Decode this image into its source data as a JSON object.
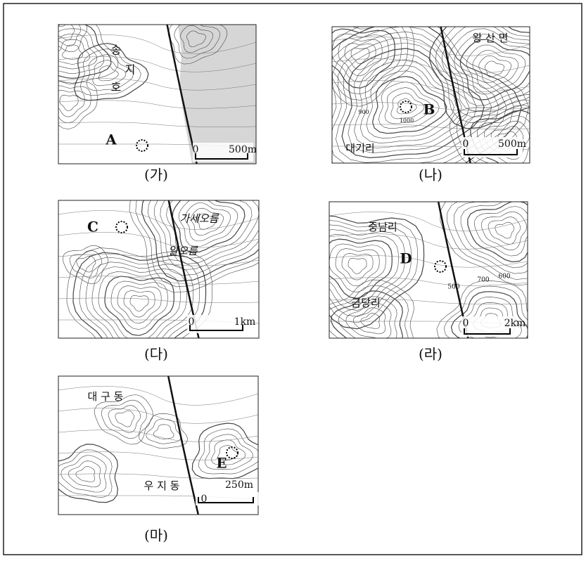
{
  "maps": [
    {
      "caption": "(가)",
      "labels": [
        "송",
        "지",
        "호",
        "A"
      ],
      "scale": [
        "0",
        "500m"
      ]
    },
    {
      "caption": "(나)",
      "labels": [
        "왕 산 면",
        "B",
        "1000",
        "900",
        "대기리"
      ],
      "scale": [
        "0",
        "500m"
      ]
    },
    {
      "caption": "(다)",
      "labels": [
        "C",
        "가세오름",
        "알오름"
      ],
      "scale": [
        "0",
        "1km"
      ]
    },
    {
      "caption": "(라)",
      "labels": [
        "중남리",
        "D",
        "금당리",
        "500",
        "700",
        "600"
      ],
      "scale": [
        "0",
        "2km"
      ]
    },
    {
      "caption": "(마)",
      "labels": [
        "대 구 동",
        "E",
        "우 지 동"
      ],
      "scale": [
        "0",
        "250m"
      ]
    }
  ]
}
